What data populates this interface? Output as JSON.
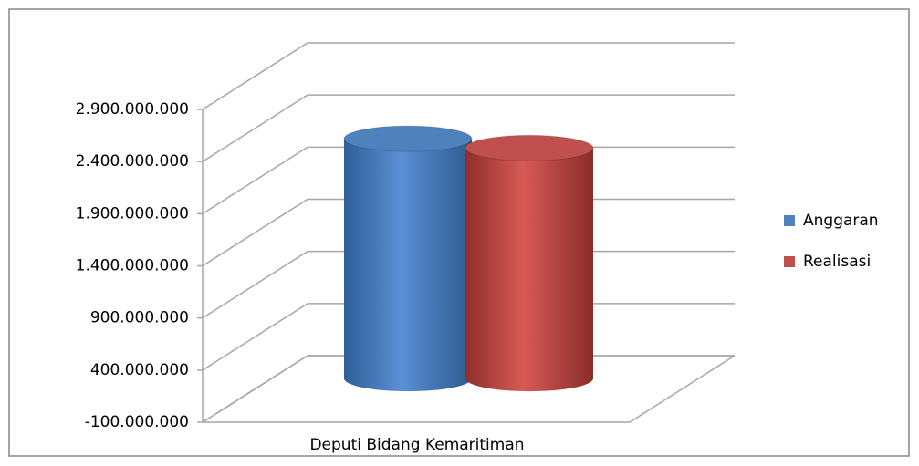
{
  "chart_data": {
    "type": "bar",
    "categories": [
      "Deputi Bidang Kemaritiman"
    ],
    "series": [
      {
        "name": "Anggaran",
        "color": "#4f81bd",
        "values": [
          2300000000
        ]
      },
      {
        "name": "Realisasi",
        "color": "#c0504d",
        "values": [
          2210000000
        ]
      }
    ],
    "ylim": [
      -100000000,
      2900000000
    ],
    "yticks": [
      {
        "value": -100000000,
        "label": "-100.000.000"
      },
      {
        "value": 400000000,
        "label": "400.000.000"
      },
      {
        "value": 900000000,
        "label": "900.000.000"
      },
      {
        "value": 1400000000,
        "label": "1.400.000.000"
      },
      {
        "value": 1900000000,
        "label": "1.900.000.000"
      },
      {
        "value": 2400000000,
        "label": "2.400.000.000"
      },
      {
        "value": 2900000000,
        "label": "2.900.000.000"
      }
    ],
    "grid": true,
    "legend": "right"
  }
}
